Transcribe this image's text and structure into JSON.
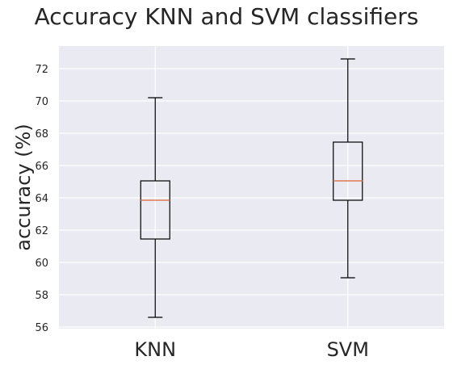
{
  "chart_data": {
    "type": "box",
    "title": "Accuracy KNN and SVM classifiers",
    "xlabel": "",
    "ylabel": "accuracy (%)",
    "ylim": [
      55.9,
      73.4
    ],
    "yticks": [
      56,
      58,
      60,
      62,
      64,
      66,
      68,
      70,
      72
    ],
    "categories": [
      "KNN",
      "SVM"
    ],
    "boxes": [
      {
        "category": "KNN",
        "whisker_low": 56.6,
        "q1": 61.45,
        "median": 63.85,
        "q3": 65.05,
        "whisker_high": 70.2
      },
      {
        "category": "SVM",
        "whisker_low": 59.05,
        "q1": 63.85,
        "median": 65.05,
        "q3": 67.45,
        "whisker_high": 72.6
      }
    ],
    "grid": true,
    "colors": {
      "background": "#eaeaf2",
      "grid": "#ffffff",
      "median": "#e07b54",
      "box": "#000000"
    }
  }
}
